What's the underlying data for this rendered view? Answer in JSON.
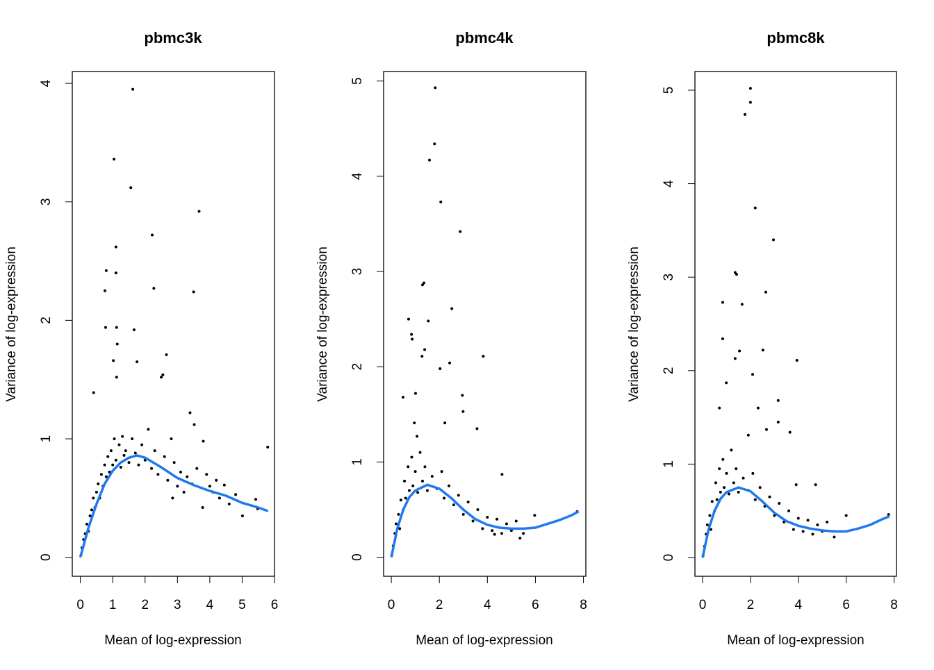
{
  "chart_data": [
    {
      "type": "scatter",
      "title": "pbmc3k",
      "xlabel": "Mean of log-expression",
      "ylabel": "Variance of log-expression",
      "xlim": [
        -0.25,
        6.0
      ],
      "ylim": [
        -0.16,
        4.1
      ],
      "xticks": [
        0,
        1,
        2,
        3,
        4,
        5,
        6
      ],
      "yticks": [
        0,
        1,
        2,
        3,
        4
      ],
      "grid": false,
      "point_color": "#000000",
      "trend_color": "#1f78f0",
      "points": [
        [
          1.62,
          3.95
        ],
        [
          1.04,
          3.36
        ],
        [
          1.56,
          3.12
        ],
        [
          3.67,
          2.92
        ],
        [
          2.22,
          2.72
        ],
        [
          1.1,
          2.62
        ],
        [
          0.8,
          2.42
        ],
        [
          1.1,
          2.4
        ],
        [
          2.27,
          2.27
        ],
        [
          3.5,
          2.24
        ],
        [
          0.76,
          2.25
        ],
        [
          0.78,
          1.94
        ],
        [
          1.12,
          1.94
        ],
        [
          1.66,
          1.92
        ],
        [
          1.14,
          1.8
        ],
        [
          2.66,
          1.71
        ],
        [
          2.55,
          1.54
        ],
        [
          2.5,
          1.52
        ],
        [
          1.02,
          1.66
        ],
        [
          1.12,
          1.52
        ],
        [
          1.75,
          1.65
        ],
        [
          0.41,
          1.39
        ],
        [
          5.79,
          0.93
        ],
        [
          3.39,
          1.22
        ],
        [
          3.52,
          1.12
        ],
        [
          3.8,
          0.98
        ],
        [
          5.01,
          0.35
        ],
        [
          5.42,
          0.49
        ],
        [
          5.48,
          0.41
        ],
        [
          4.8,
          0.53
        ],
        [
          4.45,
          0.61
        ],
        [
          4.0,
          0.6
        ],
        [
          3.78,
          0.42
        ],
        [
          2.85,
          0.5
        ],
        [
          2.81,
          1.0
        ],
        [
          0.02,
          0.02
        ],
        [
          0.05,
          0.08
        ],
        [
          0.1,
          0.15
        ],
        [
          0.15,
          0.2
        ],
        [
          0.2,
          0.28
        ],
        [
          0.25,
          0.22
        ],
        [
          0.3,
          0.35
        ],
        [
          0.35,
          0.4
        ],
        [
          0.4,
          0.5
        ],
        [
          0.45,
          0.42
        ],
        [
          0.5,
          0.55
        ],
        [
          0.55,
          0.62
        ],
        [
          0.6,
          0.5
        ],
        [
          0.65,
          0.7
        ],
        [
          0.7,
          0.6
        ],
        [
          0.75,
          0.78
        ],
        [
          0.8,
          0.68
        ],
        [
          0.85,
          0.85
        ],
        [
          0.9,
          0.72
        ],
        [
          0.95,
          0.9
        ],
        [
          1.0,
          0.78
        ],
        [
          1.05,
          1.0
        ],
        [
          1.1,
          0.82
        ],
        [
          1.2,
          0.95
        ],
        [
          1.25,
          0.76
        ],
        [
          1.3,
          1.02
        ],
        [
          1.35,
          0.86
        ],
        [
          1.4,
          0.9
        ],
        [
          1.5,
          0.8
        ],
        [
          1.6,
          1.0
        ],
        [
          1.7,
          0.88
        ],
        [
          1.8,
          0.78
        ],
        [
          1.9,
          0.95
        ],
        [
          2.0,
          0.82
        ],
        [
          2.1,
          1.08
        ],
        [
          2.2,
          0.75
        ],
        [
          2.3,
          0.9
        ],
        [
          2.4,
          0.7
        ],
        [
          2.6,
          0.85
        ],
        [
          2.7,
          0.65
        ],
        [
          2.9,
          0.8
        ],
        [
          3.0,
          0.6
        ],
        [
          3.1,
          0.72
        ],
        [
          3.2,
          0.55
        ],
        [
          3.3,
          0.68
        ],
        [
          3.45,
          0.62
        ],
        [
          3.6,
          0.75
        ],
        [
          3.9,
          0.7
        ],
        [
          4.1,
          0.55
        ],
        [
          4.2,
          0.65
        ],
        [
          4.3,
          0.5
        ],
        [
          4.6,
          0.45
        ]
      ],
      "trend": [
        [
          0,
          0
        ],
        [
          0.25,
          0.25
        ],
        [
          0.5,
          0.45
        ],
        [
          0.75,
          0.62
        ],
        [
          1,
          0.73
        ],
        [
          1.25,
          0.8
        ],
        [
          1.5,
          0.84
        ],
        [
          1.75,
          0.86
        ],
        [
          2,
          0.84
        ],
        [
          2.5,
          0.76
        ],
        [
          3,
          0.67
        ],
        [
          3.5,
          0.61
        ],
        [
          4,
          0.56
        ],
        [
          4.5,
          0.52
        ],
        [
          5,
          0.46
        ],
        [
          5.5,
          0.42
        ],
        [
          5.8,
          0.39
        ]
      ]
    },
    {
      "type": "scatter",
      "title": "pbmc4k",
      "xlabel": "Mean of log-expression",
      "ylabel": "Variance of log-expression",
      "xlim": [
        -0.32,
        8.1
      ],
      "ylim": [
        -0.2,
        5.1
      ],
      "xticks": [
        0,
        2,
        4,
        6,
        8
      ],
      "yticks": [
        0,
        1,
        2,
        3,
        4,
        5
      ],
      "grid": false,
      "point_color": "#000000",
      "trend_color": "#1f78f0",
      "points": [
        [
          1.83,
          4.93
        ],
        [
          1.8,
          4.34
        ],
        [
          1.59,
          4.17
        ],
        [
          2.06,
          3.73
        ],
        [
          2.87,
          3.42
        ],
        [
          1.36,
          2.88
        ],
        [
          1.3,
          2.86
        ],
        [
          0.72,
          2.5
        ],
        [
          1.54,
          2.48
        ],
        [
          2.52,
          2.61
        ],
        [
          0.84,
          2.34
        ],
        [
          0.87,
          2.29
        ],
        [
          3.83,
          2.11
        ],
        [
          1.39,
          2.18
        ],
        [
          1.28,
          2.11
        ],
        [
          2.43,
          2.04
        ],
        [
          2.03,
          1.98
        ],
        [
          2.96,
          1.7
        ],
        [
          2.99,
          1.53
        ],
        [
          3.57,
          1.35
        ],
        [
          4.61,
          0.87
        ],
        [
          5.97,
          0.44
        ],
        [
          7.74,
          0.48
        ],
        [
          0.49,
          1.68
        ],
        [
          1.01,
          1.72
        ],
        [
          2.23,
          1.41
        ],
        [
          0.96,
          1.41
        ],
        [
          1.07,
          1.27
        ],
        [
          5.36,
          0.2
        ],
        [
          4.3,
          0.24
        ],
        [
          0.02,
          0.02
        ],
        [
          0.08,
          0.12
        ],
        [
          0.15,
          0.25
        ],
        [
          0.2,
          0.35
        ],
        [
          0.3,
          0.45
        ],
        [
          0.35,
          0.3
        ],
        [
          0.4,
          0.6
        ],
        [
          0.5,
          0.5
        ],
        [
          0.55,
          0.8
        ],
        [
          0.6,
          0.62
        ],
        [
          0.7,
          0.95
        ],
        [
          0.75,
          0.7
        ],
        [
          0.85,
          1.05
        ],
        [
          0.9,
          0.75
        ],
        [
          1.0,
          0.9
        ],
        [
          1.1,
          0.68
        ],
        [
          1.2,
          1.1
        ],
        [
          1.3,
          0.8
        ],
        [
          1.4,
          0.95
        ],
        [
          1.5,
          0.7
        ],
        [
          1.7,
          0.85
        ],
        [
          1.9,
          0.72
        ],
        [
          2.1,
          0.9
        ],
        [
          2.2,
          0.62
        ],
        [
          2.4,
          0.75
        ],
        [
          2.6,
          0.55
        ],
        [
          2.8,
          0.65
        ],
        [
          3.0,
          0.45
        ],
        [
          3.2,
          0.58
        ],
        [
          3.4,
          0.38
        ],
        [
          3.6,
          0.5
        ],
        [
          3.8,
          0.3
        ],
        [
          4.0,
          0.42
        ],
        [
          4.2,
          0.28
        ],
        [
          4.4,
          0.4
        ],
        [
          4.6,
          0.25
        ],
        [
          4.8,
          0.35
        ],
        [
          5.0,
          0.28
        ],
        [
          5.2,
          0.38
        ],
        [
          5.5,
          0.25
        ]
      ],
      "trend": [
        [
          0,
          0
        ],
        [
          0.25,
          0.3
        ],
        [
          0.5,
          0.5
        ],
        [
          0.75,
          0.63
        ],
        [
          1,
          0.7
        ],
        [
          1.5,
          0.76
        ],
        [
          2,
          0.72
        ],
        [
          2.5,
          0.62
        ],
        [
          3,
          0.5
        ],
        [
          3.5,
          0.4
        ],
        [
          4,
          0.34
        ],
        [
          4.5,
          0.31
        ],
        [
          5,
          0.3
        ],
        [
          5.5,
          0.3
        ],
        [
          6,
          0.31
        ],
        [
          6.5,
          0.35
        ],
        [
          7,
          0.39
        ],
        [
          7.5,
          0.44
        ],
        [
          7.8,
          0.48
        ]
      ]
    },
    {
      "type": "scatter",
      "title": "pbmc8k",
      "xlabel": "Mean of log-expression",
      "ylabel": "Variance of log-expression",
      "xlim": [
        -0.32,
        8.1
      ],
      "ylim": [
        -0.2,
        5.2
      ],
      "xticks": [
        0,
        2,
        4,
        6,
        8
      ],
      "yticks": [
        0,
        1,
        2,
        3,
        4,
        5
      ],
      "grid": false,
      "point_color": "#000000",
      "trend_color": "#1f78f0",
      "points": [
        [
          2.0,
          5.02
        ],
        [
          2.0,
          4.87
        ],
        [
          1.77,
          4.74
        ],
        [
          2.2,
          3.74
        ],
        [
          2.96,
          3.4
        ],
        [
          1.36,
          3.05
        ],
        [
          1.42,
          3.03
        ],
        [
          2.64,
          2.84
        ],
        [
          0.84,
          2.73
        ],
        [
          1.65,
          2.71
        ],
        [
          0.84,
          2.34
        ],
        [
          2.52,
          2.22
        ],
        [
          3.94,
          2.11
        ],
        [
          1.54,
          2.21
        ],
        [
          1.36,
          2.13
        ],
        [
          2.09,
          1.96
        ],
        [
          0.99,
          1.87
        ],
        [
          3.16,
          1.68
        ],
        [
          2.32,
          1.6
        ],
        [
          0.7,
          1.6
        ],
        [
          3.16,
          1.45
        ],
        [
          3.65,
          1.34
        ],
        [
          3.91,
          0.78
        ],
        [
          4.72,
          0.78
        ],
        [
          6.0,
          0.45
        ],
        [
          7.77,
          0.46
        ],
        [
          2.67,
          1.37
        ],
        [
          1.91,
          1.31
        ],
        [
          0.02,
          0.02
        ],
        [
          0.08,
          0.12
        ],
        [
          0.15,
          0.25
        ],
        [
          0.2,
          0.35
        ],
        [
          0.3,
          0.45
        ],
        [
          0.35,
          0.3
        ],
        [
          0.4,
          0.6
        ],
        [
          0.5,
          0.5
        ],
        [
          0.55,
          0.8
        ],
        [
          0.6,
          0.62
        ],
        [
          0.7,
          0.95
        ],
        [
          0.75,
          0.7
        ],
        [
          0.85,
          1.05
        ],
        [
          0.9,
          0.75
        ],
        [
          1.0,
          0.9
        ],
        [
          1.1,
          0.68
        ],
        [
          1.2,
          1.15
        ],
        [
          1.3,
          0.8
        ],
        [
          1.4,
          0.95
        ],
        [
          1.5,
          0.7
        ],
        [
          1.7,
          0.85
        ],
        [
          1.9,
          0.72
        ],
        [
          2.1,
          0.9
        ],
        [
          2.2,
          0.62
        ],
        [
          2.4,
          0.75
        ],
        [
          2.6,
          0.55
        ],
        [
          2.8,
          0.65
        ],
        [
          3.0,
          0.45
        ],
        [
          3.2,
          0.58
        ],
        [
          3.4,
          0.38
        ],
        [
          3.6,
          0.5
        ],
        [
          3.8,
          0.3
        ],
        [
          4.0,
          0.42
        ],
        [
          4.2,
          0.28
        ],
        [
          4.4,
          0.4
        ],
        [
          4.6,
          0.25
        ],
        [
          4.8,
          0.35
        ],
        [
          5.0,
          0.28
        ],
        [
          5.2,
          0.38
        ],
        [
          5.5,
          0.22
        ]
      ],
      "trend": [
        [
          0,
          0
        ],
        [
          0.25,
          0.3
        ],
        [
          0.5,
          0.5
        ],
        [
          0.75,
          0.63
        ],
        [
          1,
          0.7
        ],
        [
          1.5,
          0.75
        ],
        [
          2,
          0.71
        ],
        [
          2.5,
          0.6
        ],
        [
          3,
          0.48
        ],
        [
          3.5,
          0.39
        ],
        [
          4,
          0.34
        ],
        [
          4.5,
          0.31
        ],
        [
          5,
          0.29
        ],
        [
          5.5,
          0.28
        ],
        [
          6,
          0.28
        ],
        [
          6.5,
          0.31
        ],
        [
          7,
          0.35
        ],
        [
          7.5,
          0.41
        ],
        [
          7.8,
          0.44
        ]
      ]
    }
  ]
}
